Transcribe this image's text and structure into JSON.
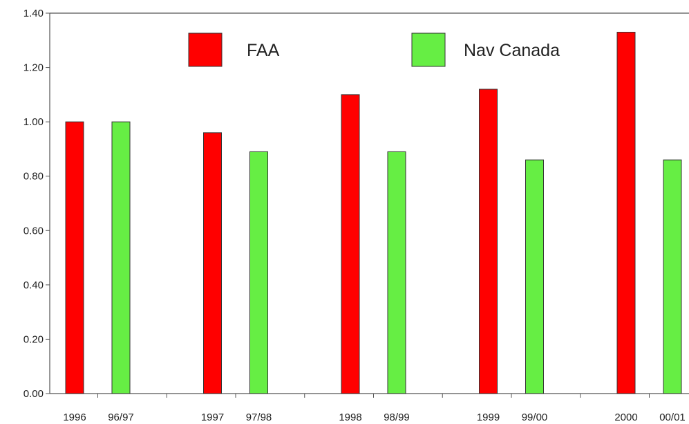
{
  "chart_data": {
    "type": "bar",
    "categories": [
      "1996",
      "96/97",
      "1997",
      "97/98",
      "1998",
      "98/99",
      "1999",
      "99/00",
      "2000",
      "00/01"
    ],
    "series": [
      {
        "name": "FAA",
        "color": "#ff0000",
        "values": [
          1.0,
          null,
          0.96,
          null,
          1.1,
          null,
          1.12,
          null,
          1.33,
          null
        ]
      },
      {
        "name": "Nav Canada",
        "color": "#66ee44",
        "values": [
          null,
          1.0,
          null,
          0.89,
          null,
          0.89,
          null,
          0.86,
          null,
          0.86
        ]
      }
    ],
    "y_ticks": [
      "0.00",
      "0.20",
      "0.40",
      "0.60",
      "0.80",
      "1.00",
      "1.20",
      "1.40"
    ],
    "ylim": [
      0,
      1.4
    ],
    "title": "",
    "xlabel": "",
    "ylabel": "",
    "grid": false,
    "legend_position": "top"
  }
}
